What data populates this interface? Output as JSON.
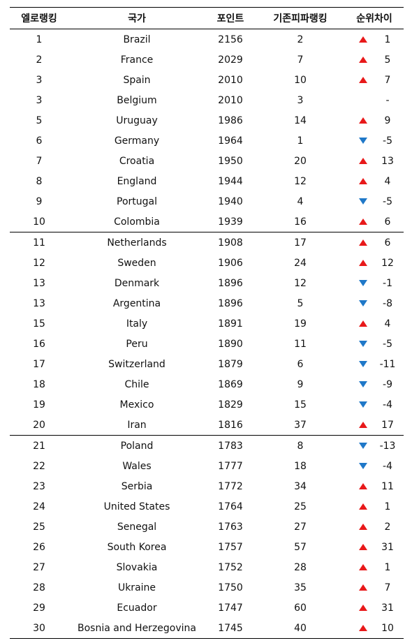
{
  "table": {
    "headers": {
      "elo": "엘로랭킹",
      "nation": "국가",
      "points": "포인트",
      "fifa": "기존피파랭킹",
      "diff": "순위차이"
    },
    "colors": {
      "up": "#e8191a",
      "down": "#1f78c8"
    },
    "rows": [
      {
        "elo": "1",
        "nation": "Brazil",
        "points": "2156",
        "fifa": "2",
        "trend": "up",
        "diff": "1"
      },
      {
        "elo": "2",
        "nation": "France",
        "points": "2029",
        "fifa": "7",
        "trend": "up",
        "diff": "5"
      },
      {
        "elo": "3",
        "nation": "Spain",
        "points": "2010",
        "fifa": "10",
        "trend": "up",
        "diff": "7"
      },
      {
        "elo": "3",
        "nation": "Belgium",
        "points": "2010",
        "fifa": "3",
        "trend": "none",
        "diff": "-"
      },
      {
        "elo": "5",
        "nation": "Uruguay",
        "points": "1986",
        "fifa": "14",
        "trend": "up",
        "diff": "9"
      },
      {
        "elo": "6",
        "nation": "Germany",
        "points": "1964",
        "fifa": "1",
        "trend": "down",
        "diff": "-5"
      },
      {
        "elo": "7",
        "nation": "Croatia",
        "points": "1950",
        "fifa": "20",
        "trend": "up",
        "diff": "13"
      },
      {
        "elo": "8",
        "nation": "England",
        "points": "1944",
        "fifa": "12",
        "trend": "up",
        "diff": "4"
      },
      {
        "elo": "9",
        "nation": "Portugal",
        "points": "1940",
        "fifa": "4",
        "trend": "down",
        "diff": "-5"
      },
      {
        "elo": "10",
        "nation": "Colombia",
        "points": "1939",
        "fifa": "16",
        "trend": "up",
        "diff": "6"
      },
      {
        "elo": "11",
        "nation": "Netherlands",
        "points": "1908",
        "fifa": "17",
        "trend": "up",
        "diff": "6"
      },
      {
        "elo": "12",
        "nation": "Sweden",
        "points": "1906",
        "fifa": "24",
        "trend": "up",
        "diff": "12"
      },
      {
        "elo": "13",
        "nation": "Denmark",
        "points": "1896",
        "fifa": "12",
        "trend": "down",
        "diff": "-1"
      },
      {
        "elo": "13",
        "nation": "Argentina",
        "points": "1896",
        "fifa": "5",
        "trend": "down",
        "diff": "-8"
      },
      {
        "elo": "15",
        "nation": "Italy",
        "points": "1891",
        "fifa": "19",
        "trend": "up",
        "diff": "4"
      },
      {
        "elo": "16",
        "nation": "Peru",
        "points": "1890",
        "fifa": "11",
        "trend": "down",
        "diff": "-5"
      },
      {
        "elo": "17",
        "nation": "Switzerland",
        "points": "1879",
        "fifa": "6",
        "trend": "down",
        "diff": "-11"
      },
      {
        "elo": "18",
        "nation": "Chile",
        "points": "1869",
        "fifa": "9",
        "trend": "down",
        "diff": "-9"
      },
      {
        "elo": "19",
        "nation": "Mexico",
        "points": "1829",
        "fifa": "15",
        "trend": "down",
        "diff": "-4"
      },
      {
        "elo": "20",
        "nation": "Iran",
        "points": "1816",
        "fifa": "37",
        "trend": "up",
        "diff": "17"
      },
      {
        "elo": "21",
        "nation": "Poland",
        "points": "1783",
        "fifa": "8",
        "trend": "down",
        "diff": "-13"
      },
      {
        "elo": "22",
        "nation": "Wales",
        "points": "1777",
        "fifa": "18",
        "trend": "down",
        "diff": "-4"
      },
      {
        "elo": "23",
        "nation": "Serbia",
        "points": "1772",
        "fifa": "34",
        "trend": "up",
        "diff": "11"
      },
      {
        "elo": "24",
        "nation": "United States",
        "points": "1764",
        "fifa": "25",
        "trend": "up",
        "diff": "1"
      },
      {
        "elo": "25",
        "nation": "Senegal",
        "points": "1763",
        "fifa": "27",
        "trend": "up",
        "diff": "2"
      },
      {
        "elo": "26",
        "nation": "South Korea",
        "points": "1757",
        "fifa": "57",
        "trend": "up",
        "diff": "31"
      },
      {
        "elo": "27",
        "nation": "Slovakia",
        "points": "1752",
        "fifa": "28",
        "trend": "up",
        "diff": "1"
      },
      {
        "elo": "28",
        "nation": "Ukraine",
        "points": "1750",
        "fifa": "35",
        "trend": "up",
        "diff": "7"
      },
      {
        "elo": "29",
        "nation": "Ecuador",
        "points": "1747",
        "fifa": "60",
        "trend": "up",
        "diff": "31"
      },
      {
        "elo": "30",
        "nation": "Bosnia and Herzegovina",
        "points": "1745",
        "fifa": "40",
        "trend": "up",
        "diff": "10"
      }
    ]
  }
}
